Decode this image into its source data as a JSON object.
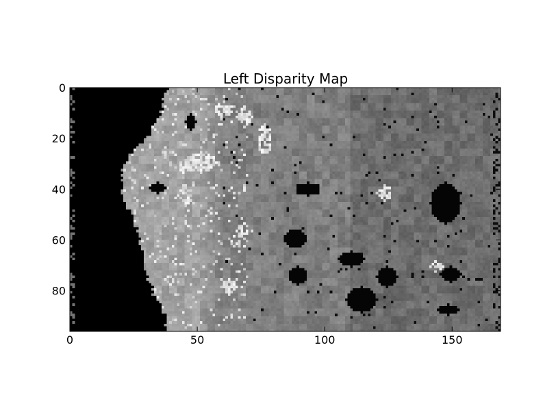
{
  "chart_data": {
    "type": "heatmap",
    "title": "Left Disparity Map",
    "xlabel": "",
    "ylabel": "",
    "colormap": "gray",
    "image_width": 169,
    "image_height": 96,
    "xlim": [
      0,
      169
    ],
    "ylim": [
      96,
      0
    ],
    "x_ticks": [
      0,
      50,
      100,
      150
    ],
    "y_ticks": [
      0,
      20,
      40,
      60,
      80
    ],
    "grid": false,
    "colors": {
      "background": "#ffffff",
      "frame": "#000000"
    },
    "regions": {
      "invalid_left_band_edge_x": [
        38,
        37,
        36,
        36,
        35,
        33,
        32,
        31,
        28,
        26,
        23,
        22,
        21,
        20,
        20,
        20,
        20,
        21,
        22,
        23,
        24,
        25,
        26,
        27,
        27,
        28,
        28,
        29,
        29,
        30,
        31,
        32,
        33,
        35,
        36,
        37,
        37,
        38
      ],
      "base_gray_levels": {
        "left_band": 0.63,
        "middle": 0.5,
        "right": 0.43
      },
      "dark_blobs": [
        {
          "x": 93,
          "y": 39.5,
          "rx": 5,
          "ry": 2.5
        },
        {
          "x": 88,
          "y": 59,
          "rx": 4.5,
          "ry": 3.5
        },
        {
          "x": 89,
          "y": 73.5,
          "rx": 4,
          "ry": 3.5
        },
        {
          "x": 110,
          "y": 67,
          "rx": 5,
          "ry": 3
        },
        {
          "x": 114,
          "y": 83,
          "rx": 6,
          "ry": 5
        },
        {
          "x": 124,
          "y": 74,
          "rx": 4,
          "ry": 4
        },
        {
          "x": 147,
          "y": 45,
          "rx": 6,
          "ry": 8
        },
        {
          "x": 149,
          "y": 73,
          "rx": 4,
          "ry": 3
        },
        {
          "x": 148,
          "y": 87,
          "rx": 4,
          "ry": 2
        },
        {
          "x": 47,
          "y": 13,
          "rx": 2,
          "ry": 3
        },
        {
          "x": 34,
          "y": 39,
          "rx": 3,
          "ry": 2
        }
      ],
      "bright_blobs": [
        {
          "x": 60,
          "y": 8,
          "rx": 4,
          "ry": 3
        },
        {
          "x": 51,
          "y": 29,
          "rx": 6,
          "ry": 4
        },
        {
          "x": 45,
          "y": 31,
          "rx": 4,
          "ry": 3
        },
        {
          "x": 76,
          "y": 20,
          "rx": 3,
          "ry": 6
        },
        {
          "x": 68,
          "y": 11,
          "rx": 3,
          "ry": 4
        },
        {
          "x": 45,
          "y": 42,
          "rx": 3,
          "ry": 4
        },
        {
          "x": 68,
          "y": 56,
          "rx": 3,
          "ry": 3
        },
        {
          "x": 62,
          "y": 78,
          "rx": 3,
          "ry": 3
        },
        {
          "x": 123,
          "y": 41,
          "rx": 3,
          "ry": 3
        },
        {
          "x": 143,
          "y": 70,
          "rx": 3,
          "ry": 2
        }
      ]
    }
  }
}
